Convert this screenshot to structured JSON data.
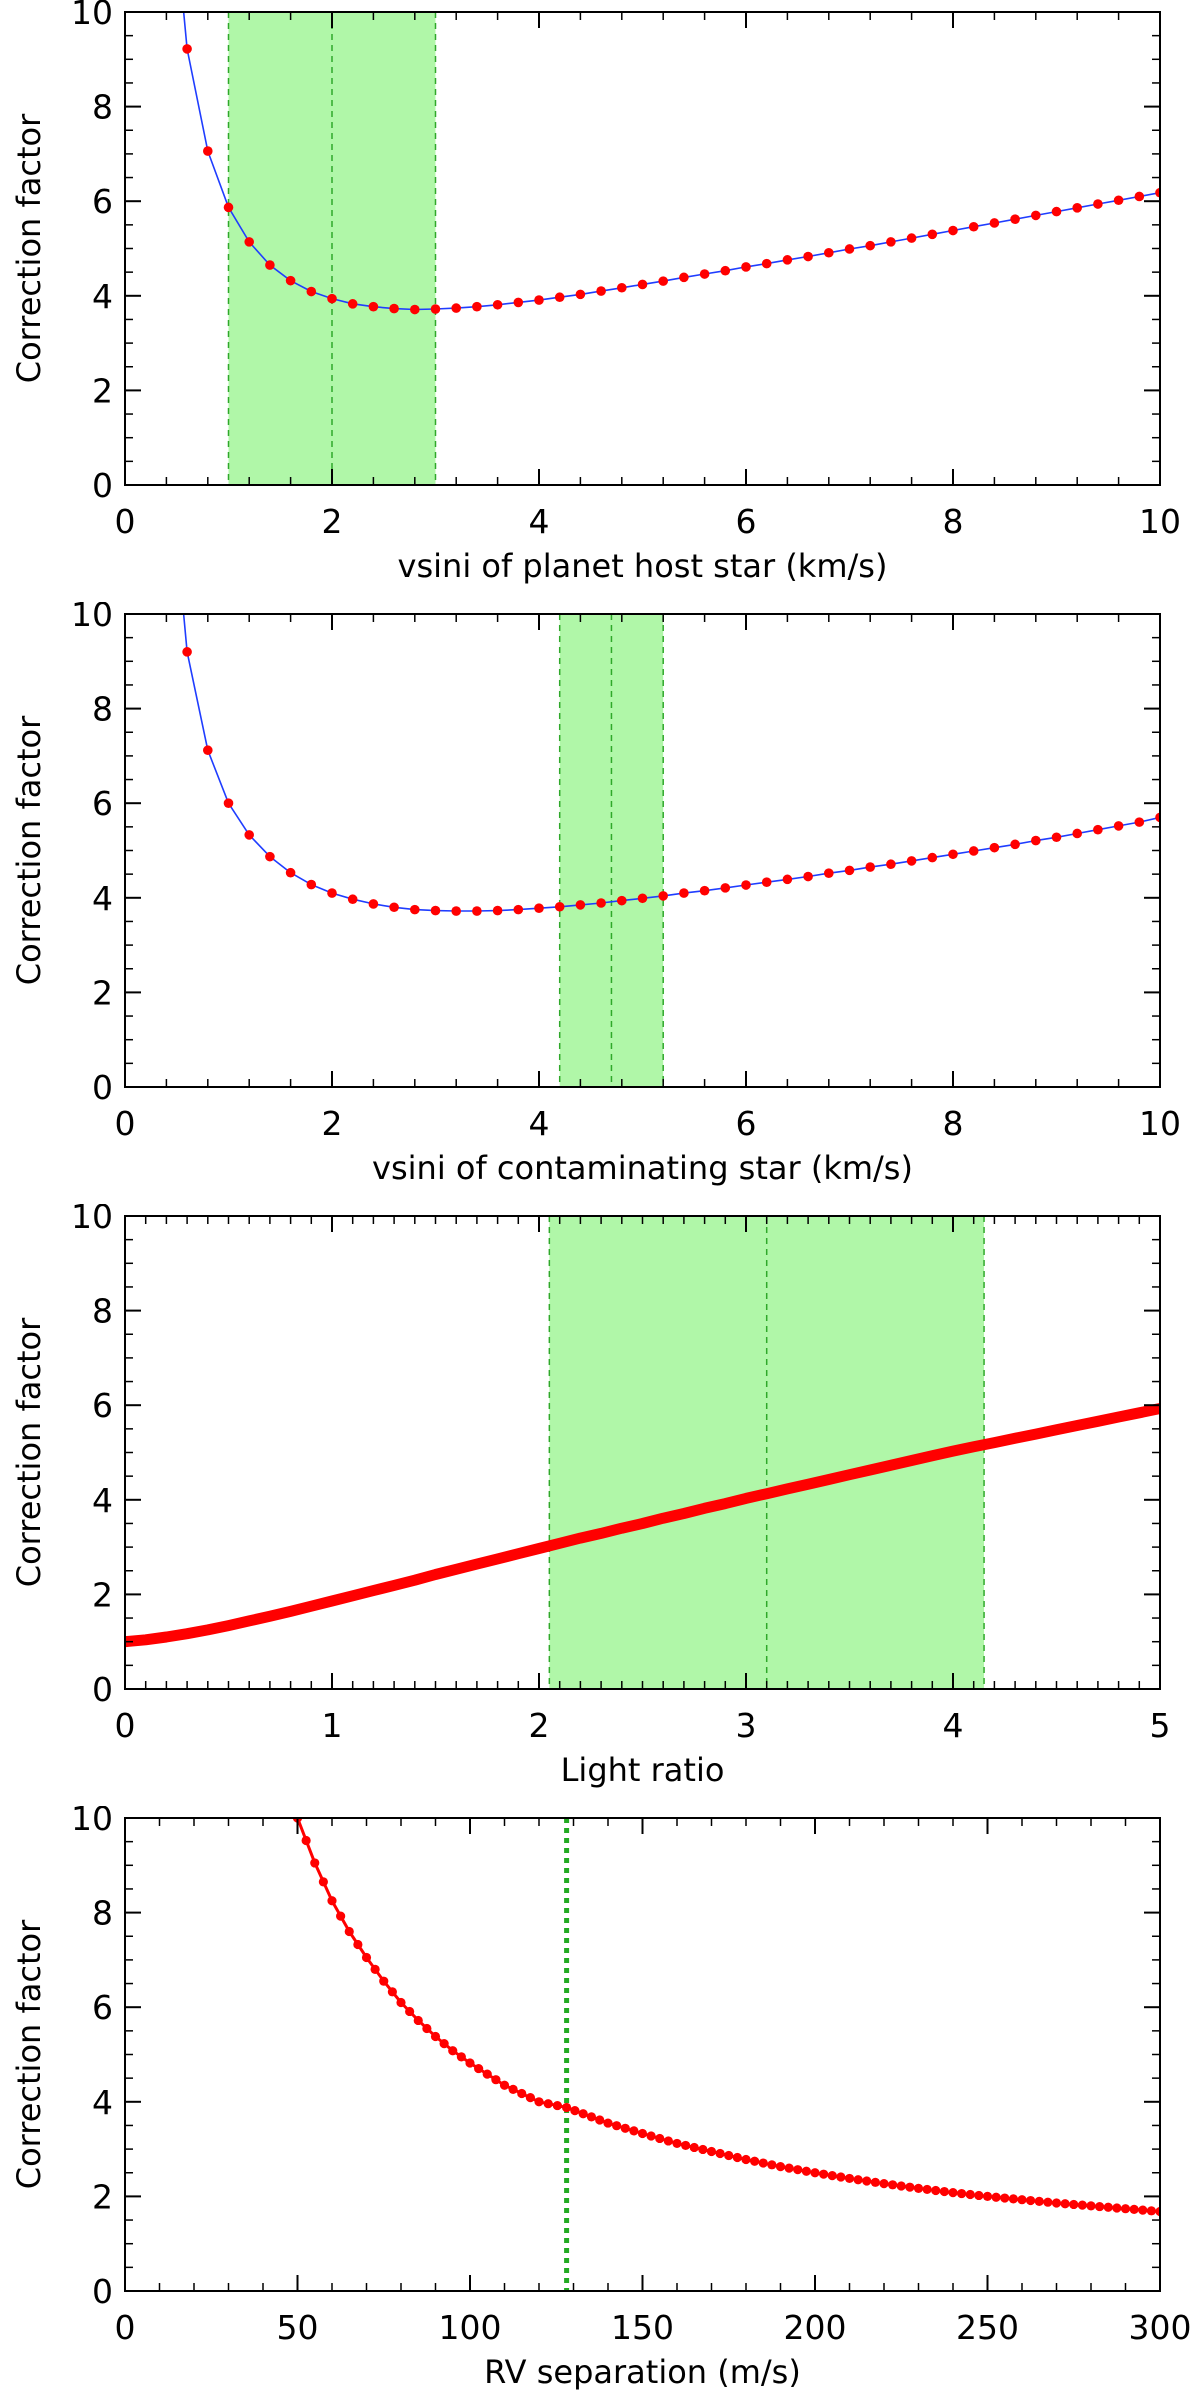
{
  "chart_data": [
    {
      "type": "line",
      "title": "",
      "xlabel": "vsini of planet host star (km/s)",
      "ylabel": "Correction factor",
      "xlim": [
        0,
        10
      ],
      "ylim": [
        0,
        10
      ],
      "xticks": [
        "0",
        "2",
        "4",
        "6",
        "8",
        "10"
      ],
      "yticks": [
        "0",
        "2",
        "4",
        "6",
        "8",
        "10"
      ],
      "shaded_region": [
        1.0,
        3.0
      ],
      "marker_line": 2.0,
      "series": [
        {
          "name": "correction factor",
          "line_color": "#1f3dff",
          "marker_color": "#ff0000",
          "x": [
            0.6,
            0.8,
            1.0,
            1.2,
            1.4,
            1.6,
            1.8,
            2.0,
            2.2,
            2.4,
            2.6,
            2.8,
            3.0,
            3.2,
            3.4,
            3.6,
            3.8,
            4.0,
            4.2,
            4.4,
            4.6,
            4.8,
            5.0,
            5.2,
            5.4,
            5.6,
            5.8,
            6.0,
            6.2,
            6.4,
            6.6,
            6.8,
            7.0,
            7.2,
            7.4,
            7.6,
            7.8,
            8.0,
            8.2,
            8.4,
            8.6,
            8.8,
            9.0,
            9.2,
            9.4,
            9.6,
            9.8,
            10.0
          ],
          "values": [
            9.22,
            7.06,
            5.87,
            5.14,
            4.65,
            4.32,
            4.09,
            3.94,
            3.83,
            3.77,
            3.73,
            3.71,
            3.72,
            3.74,
            3.77,
            3.81,
            3.86,
            3.91,
            3.97,
            4.03,
            4.1,
            4.17,
            4.24,
            4.31,
            4.39,
            4.46,
            4.53,
            4.61,
            4.68,
            4.76,
            4.83,
            4.91,
            4.99,
            5.06,
            5.14,
            5.22,
            5.3,
            5.38,
            5.46,
            5.54,
            5.62,
            5.7,
            5.78,
            5.86,
            5.94,
            6.02,
            6.1,
            6.18
          ]
        }
      ]
    },
    {
      "type": "line",
      "title": "",
      "xlabel": "vsini of contaminating star (km/s)",
      "ylabel": "Correction factor",
      "xlim": [
        0,
        10
      ],
      "ylim": [
        0,
        10
      ],
      "xticks": [
        "0",
        "2",
        "4",
        "6",
        "8",
        "10"
      ],
      "yticks": [
        "0",
        "2",
        "4",
        "6",
        "8",
        "10"
      ],
      "shaded_region": [
        4.2,
        5.2
      ],
      "marker_line": 4.7,
      "series": [
        {
          "name": "correction factor",
          "line_color": "#1f3dff",
          "marker_color": "#ff0000",
          "x": [
            0.6,
            0.8,
            1.0,
            1.2,
            1.4,
            1.6,
            1.8,
            2.0,
            2.2,
            2.4,
            2.6,
            2.8,
            3.0,
            3.2,
            3.4,
            3.6,
            3.8,
            4.0,
            4.2,
            4.4,
            4.6,
            4.8,
            5.0,
            5.2,
            5.4,
            5.6,
            5.8,
            6.0,
            6.2,
            6.4,
            6.6,
            6.8,
            7.0,
            7.2,
            7.4,
            7.6,
            7.8,
            8.0,
            8.2,
            8.4,
            8.6,
            8.8,
            9.0,
            9.2,
            9.4,
            9.6,
            9.8,
            10.0
          ],
          "values": [
            9.2,
            7.12,
            6.0,
            5.33,
            4.87,
            4.53,
            4.28,
            4.1,
            3.97,
            3.87,
            3.8,
            3.75,
            3.73,
            3.72,
            3.72,
            3.73,
            3.75,
            3.78,
            3.81,
            3.85,
            3.89,
            3.94,
            3.99,
            4.04,
            4.1,
            4.15,
            4.21,
            4.27,
            4.33,
            4.39,
            4.45,
            4.52,
            4.58,
            4.65,
            4.71,
            4.78,
            4.85,
            4.92,
            4.99,
            5.06,
            5.13,
            5.21,
            5.28,
            5.36,
            5.44,
            5.52,
            5.6,
            5.7
          ]
        }
      ]
    },
    {
      "type": "line",
      "title": "",
      "xlabel": "Light ratio",
      "ylabel": "Correction factor",
      "xlim": [
        0,
        5
      ],
      "ylim": [
        0,
        10
      ],
      "xticks": [
        "0",
        "1",
        "2",
        "3",
        "4",
        "5"
      ],
      "yticks": [
        "0",
        "2",
        "4",
        "6",
        "8",
        "10"
      ],
      "shaded_region": [
        2.05,
        4.15
      ],
      "marker_line": 3.1,
      "series": [
        {
          "name": "correction factor",
          "line_color": "#ff0000",
          "marker_color": "#ff0000",
          "x": [
            0,
            0.1,
            0.2,
            0.3,
            0.4,
            0.5,
            0.6,
            0.7,
            0.8,
            0.9,
            1.0,
            1.1,
            1.2,
            1.3,
            1.4,
            1.5,
            1.6,
            1.7,
            1.8,
            1.9,
            2.0,
            2.1,
            2.2,
            2.3,
            2.4,
            2.5,
            2.6,
            2.7,
            2.8,
            2.9,
            3.0,
            3.1,
            3.2,
            3.3,
            3.4,
            3.5,
            3.6,
            3.7,
            3.8,
            3.9,
            4.0,
            4.1,
            4.2,
            4.3,
            4.4,
            4.5,
            4.6,
            4.7,
            4.8,
            4.9,
            5.0
          ],
          "values": [
            1.0,
            1.04,
            1.1,
            1.17,
            1.25,
            1.34,
            1.44,
            1.54,
            1.64,
            1.75,
            1.86,
            1.97,
            2.08,
            2.19,
            2.3,
            2.42,
            2.53,
            2.64,
            2.75,
            2.86,
            2.97,
            3.08,
            3.19,
            3.29,
            3.4,
            3.5,
            3.61,
            3.71,
            3.82,
            3.92,
            4.03,
            4.13,
            4.23,
            4.33,
            4.43,
            4.53,
            4.63,
            4.73,
            4.83,
            4.93,
            5.03,
            5.12,
            5.21,
            5.3,
            5.39,
            5.48,
            5.57,
            5.66,
            5.75,
            5.84,
            5.93
          ]
        }
      ]
    },
    {
      "type": "line",
      "title": "",
      "xlabel": "RV separation (m/s)",
      "ylabel": "Correction factor",
      "xlim": [
        0,
        300
      ],
      "ylim": [
        0,
        10
      ],
      "xticks": [
        "0",
        "50",
        "100",
        "150",
        "200",
        "250",
        "300"
      ],
      "yticks": [
        "0",
        "2",
        "4",
        "6",
        "8",
        "10"
      ],
      "marker_line": 128,
      "series": [
        {
          "name": "correction factor",
          "line_color": "#ff0000",
          "marker_color": "#ff0000",
          "x": [
            50,
            55,
            60,
            65,
            70,
            75,
            80,
            85,
            90,
            95,
            100,
            110,
            120,
            128,
            140,
            150,
            160,
            170,
            180,
            190,
            200,
            210,
            220,
            230,
            240,
            250,
            260,
            270,
            280,
            290,
            300
          ],
          "values": [
            10.0,
            9.05,
            8.25,
            7.6,
            7.05,
            6.55,
            6.1,
            5.72,
            5.38,
            5.08,
            4.82,
            4.35,
            4.0,
            3.88,
            3.55,
            3.33,
            3.12,
            2.95,
            2.78,
            2.63,
            2.5,
            2.38,
            2.27,
            2.17,
            2.08,
            2.0,
            1.93,
            1.86,
            1.8,
            1.74,
            1.68
          ]
        }
      ]
    }
  ]
}
